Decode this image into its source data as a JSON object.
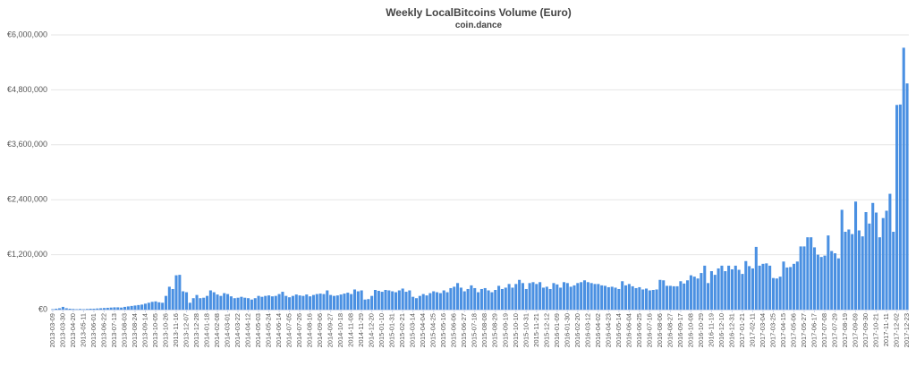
{
  "chart_data": {
    "type": "bar",
    "title": "Weekly LocalBitcoins Volume (Euro)",
    "subtitle": "coin.dance",
    "color": "#4a90e2",
    "grid": true,
    "ylim": [
      0,
      6000000
    ],
    "yticks": [
      {
        "value": 0,
        "label": "€0"
      },
      {
        "value": 1200000,
        "label": "€1,200,000"
      },
      {
        "value": 2400000,
        "label": "€2,400,000"
      },
      {
        "value": 3600000,
        "label": "€3,600,000"
      },
      {
        "value": 4800000,
        "label": "€4,800,000"
      },
      {
        "value": 6000000,
        "label": "€6,000,000"
      }
    ],
    "categories": [
      "2013-03-09",
      null,
      null,
      "2013-03-30",
      null,
      null,
      "2013-04-20",
      null,
      null,
      "2013-05-11",
      null,
      null,
      "2013-06-01",
      null,
      null,
      "2013-06-22",
      null,
      null,
      "2013-07-13",
      null,
      null,
      "2013-08-03",
      null,
      null,
      "2013-08-24",
      null,
      null,
      "2013-09-14",
      null,
      null,
      "2013-10-05",
      null,
      null,
      "2013-10-26",
      null,
      null,
      "2013-11-16",
      null,
      null,
      "2013-12-07",
      null,
      null,
      "2013-12-28",
      null,
      null,
      "2014-01-18",
      null,
      null,
      "2014-02-08",
      null,
      null,
      "2014-03-01",
      null,
      null,
      "2014-03-22",
      null,
      null,
      "2014-04-12",
      null,
      null,
      "2014-05-03",
      null,
      null,
      "2014-05-24",
      null,
      null,
      "2014-06-14",
      null,
      null,
      "2014-07-05",
      null,
      null,
      "2014-07-26",
      null,
      null,
      "2014-08-16",
      null,
      null,
      "2014-09-06",
      null,
      null,
      "2014-09-27",
      null,
      null,
      "2014-10-18",
      null,
      null,
      "2014-11-08",
      null,
      null,
      "2014-11-29",
      null,
      null,
      "2014-12-20",
      null,
      null,
      "2015-01-10",
      null,
      null,
      "2015-01-31",
      null,
      null,
      "2015-02-21",
      null,
      null,
      "2015-03-14",
      null,
      null,
      "2015-04-04",
      null,
      null,
      "2015-04-25",
      null,
      null,
      "2015-05-16",
      null,
      null,
      "2015-06-06",
      null,
      null,
      "2015-06-27",
      null,
      null,
      "2015-07-18",
      null,
      null,
      "2015-08-08",
      null,
      null,
      "2015-08-29",
      null,
      null,
      "2015-09-19",
      null,
      null,
      "2015-10-10",
      null,
      null,
      "2015-10-31",
      null,
      null,
      "2015-11-21",
      null,
      null,
      "2015-12-12",
      null,
      null,
      "2016-01-09",
      null,
      null,
      "2016-01-30",
      null,
      null,
      "2016-02-20",
      null,
      null,
      "2016-03-12",
      null,
      null,
      "2016-04-02",
      null,
      null,
      "2016-04-23",
      null,
      null,
      "2016-05-14",
      null,
      null,
      "2016-06-04",
      null,
      null,
      "2016-06-25",
      null,
      null,
      "2016-07-16",
      null,
      null,
      "2016-08-06",
      null,
      null,
      "2016-08-27",
      null,
      null,
      "2016-09-17",
      null,
      null,
      "2016-10-08",
      null,
      null,
      "2016-10-29",
      null,
      null,
      "2016-11-19",
      null,
      null,
      "2016-12-10",
      null,
      null,
      "2016-12-31",
      null,
      null,
      "2017-01-21",
      null,
      null,
      "2017-02-11",
      null,
      null,
      "2017-03-04",
      null,
      null,
      "2017-03-25",
      null,
      null,
      "2017-04-15",
      null,
      null,
      "2017-05-06",
      null,
      null,
      "2017-05-27",
      null,
      null,
      "2017-06-17",
      null,
      null,
      "2017-07-08",
      null,
      null,
      "2017-07-29",
      null,
      null,
      "2017-08-19",
      null,
      null,
      "2017-09-09",
      null,
      null,
      "2017-09-30",
      null,
      null,
      "2017-10-21",
      null,
      null,
      "2017-11-11",
      null,
      null,
      "2017-12-02",
      null,
      null,
      "2017-12-23"
    ],
    "values": [
      10000,
      20000,
      30000,
      60000,
      30000,
      20000,
      15000,
      10000,
      15000,
      10000,
      15000,
      20000,
      20000,
      25000,
      30000,
      35000,
      40000,
      45000,
      50000,
      50000,
      45000,
      60000,
      70000,
      80000,
      90000,
      100000,
      110000,
      130000,
      150000,
      170000,
      180000,
      160000,
      150000,
      300000,
      500000,
      450000,
      750000,
      760000,
      400000,
      380000,
      150000,
      250000,
      320000,
      250000,
      260000,
      300000,
      420000,
      380000,
      330000,
      300000,
      360000,
      340000,
      290000,
      250000,
      260000,
      280000,
      260000,
      250000,
      220000,
      250000,
      300000,
      280000,
      300000,
      310000,
      290000,
      300000,
      340000,
      390000,
      300000,
      270000,
      300000,
      330000,
      310000,
      300000,
      330000,
      290000,
      320000,
      340000,
      350000,
      340000,
      420000,
      320000,
      300000,
      310000,
      330000,
      350000,
      370000,
      340000,
      440000,
      400000,
      420000,
      220000,
      230000,
      300000,
      430000,
      410000,
      390000,
      430000,
      420000,
      400000,
      380000,
      420000,
      460000,
      390000,
      420000,
      280000,
      250000,
      300000,
      340000,
      310000,
      360000,
      400000,
      380000,
      360000,
      420000,
      380000,
      470000,
      500000,
      580000,
      480000,
      400000,
      450000,
      530000,
      470000,
      380000,
      450000,
      470000,
      420000,
      380000,
      430000,
      520000,
      450000,
      480000,
      560000,
      480000,
      560000,
      650000,
      580000,
      450000,
      580000,
      600000,
      560000,
      600000,
      480000,
      500000,
      450000,
      580000,
      550000,
      480000,
      600000,
      580000,
      500000,
      530000,
      580000,
      600000,
      640000,
      600000,
      580000,
      560000,
      560000,
      530000,
      520000,
      490000,
      500000,
      480000,
      450000,
      620000,
      530000,
      560000,
      510000,
      470000,
      490000,
      440000,
      460000,
      420000,
      430000,
      440000,
      650000,
      640000,
      520000,
      520000,
      510000,
      510000,
      620000,
      570000,
      640000,
      750000,
      720000,
      680000,
      800000,
      960000,
      580000,
      840000,
      760000,
      900000,
      960000,
      840000,
      960000,
      880000,
      960000,
      870000,
      780000,
      1060000,
      950000,
      900000,
      1370000,
      960000,
      1000000,
      1010000,
      960000,
      690000,
      680000,
      720000,
      1050000,
      920000,
      930000,
      1000000,
      1050000,
      1380000,
      1380000,
      1580000,
      1580000,
      1360000,
      1200000,
      1150000,
      1180000,
      1620000,
      1280000,
      1230000,
      1120000,
      2180000,
      1700000,
      1750000,
      1650000,
      2360000,
      1730000,
      1600000,
      2130000,
      1880000,
      2330000,
      2120000,
      1580000,
      2000000,
      2160000,
      2530000,
      1700000,
      4470000,
      4480000,
      5720000,
      4940000
    ]
  }
}
